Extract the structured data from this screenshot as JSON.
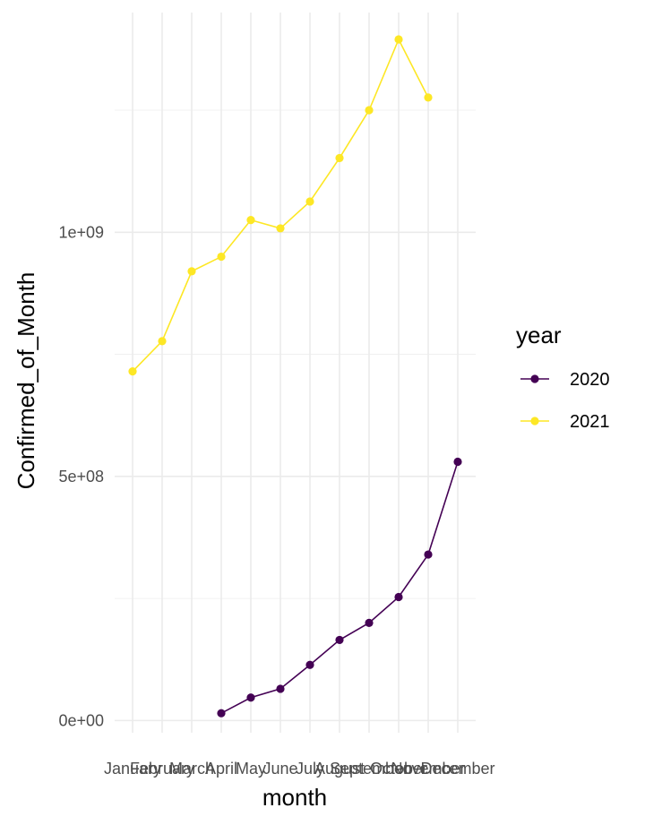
{
  "chart_data": {
    "type": "line",
    "title": "",
    "xlabel": "month",
    "ylabel": "Confirmed_of_Month",
    "categories": [
      "January",
      "February",
      "March",
      "April",
      "May",
      "June",
      "July",
      "August",
      "September",
      "October",
      "November",
      "December"
    ],
    "ylim": [
      -25000000,
      1450000000
    ],
    "yticks": [
      0,
      500000000,
      1000000000
    ],
    "ytick_labels": [
      "0e+00",
      "5e+08",
      "1e+09"
    ],
    "grid": true,
    "legend": {
      "title": "year",
      "position": "right"
    },
    "series": [
      {
        "name": "2020",
        "color": "#440154",
        "values": [
          null,
          null,
          null,
          15000000,
          47000000,
          65000000,
          114000000,
          165000000,
          200000000,
          253000000,
          340000000,
          530000000
        ]
      },
      {
        "name": "2021",
        "color": "#FDE725",
        "values": [
          715000000,
          777000000,
          920000000,
          950000000,
          1025000000,
          1008000000,
          1063000000,
          1152000000,
          1250000000,
          1395000000,
          1276000000,
          null
        ]
      }
    ]
  }
}
